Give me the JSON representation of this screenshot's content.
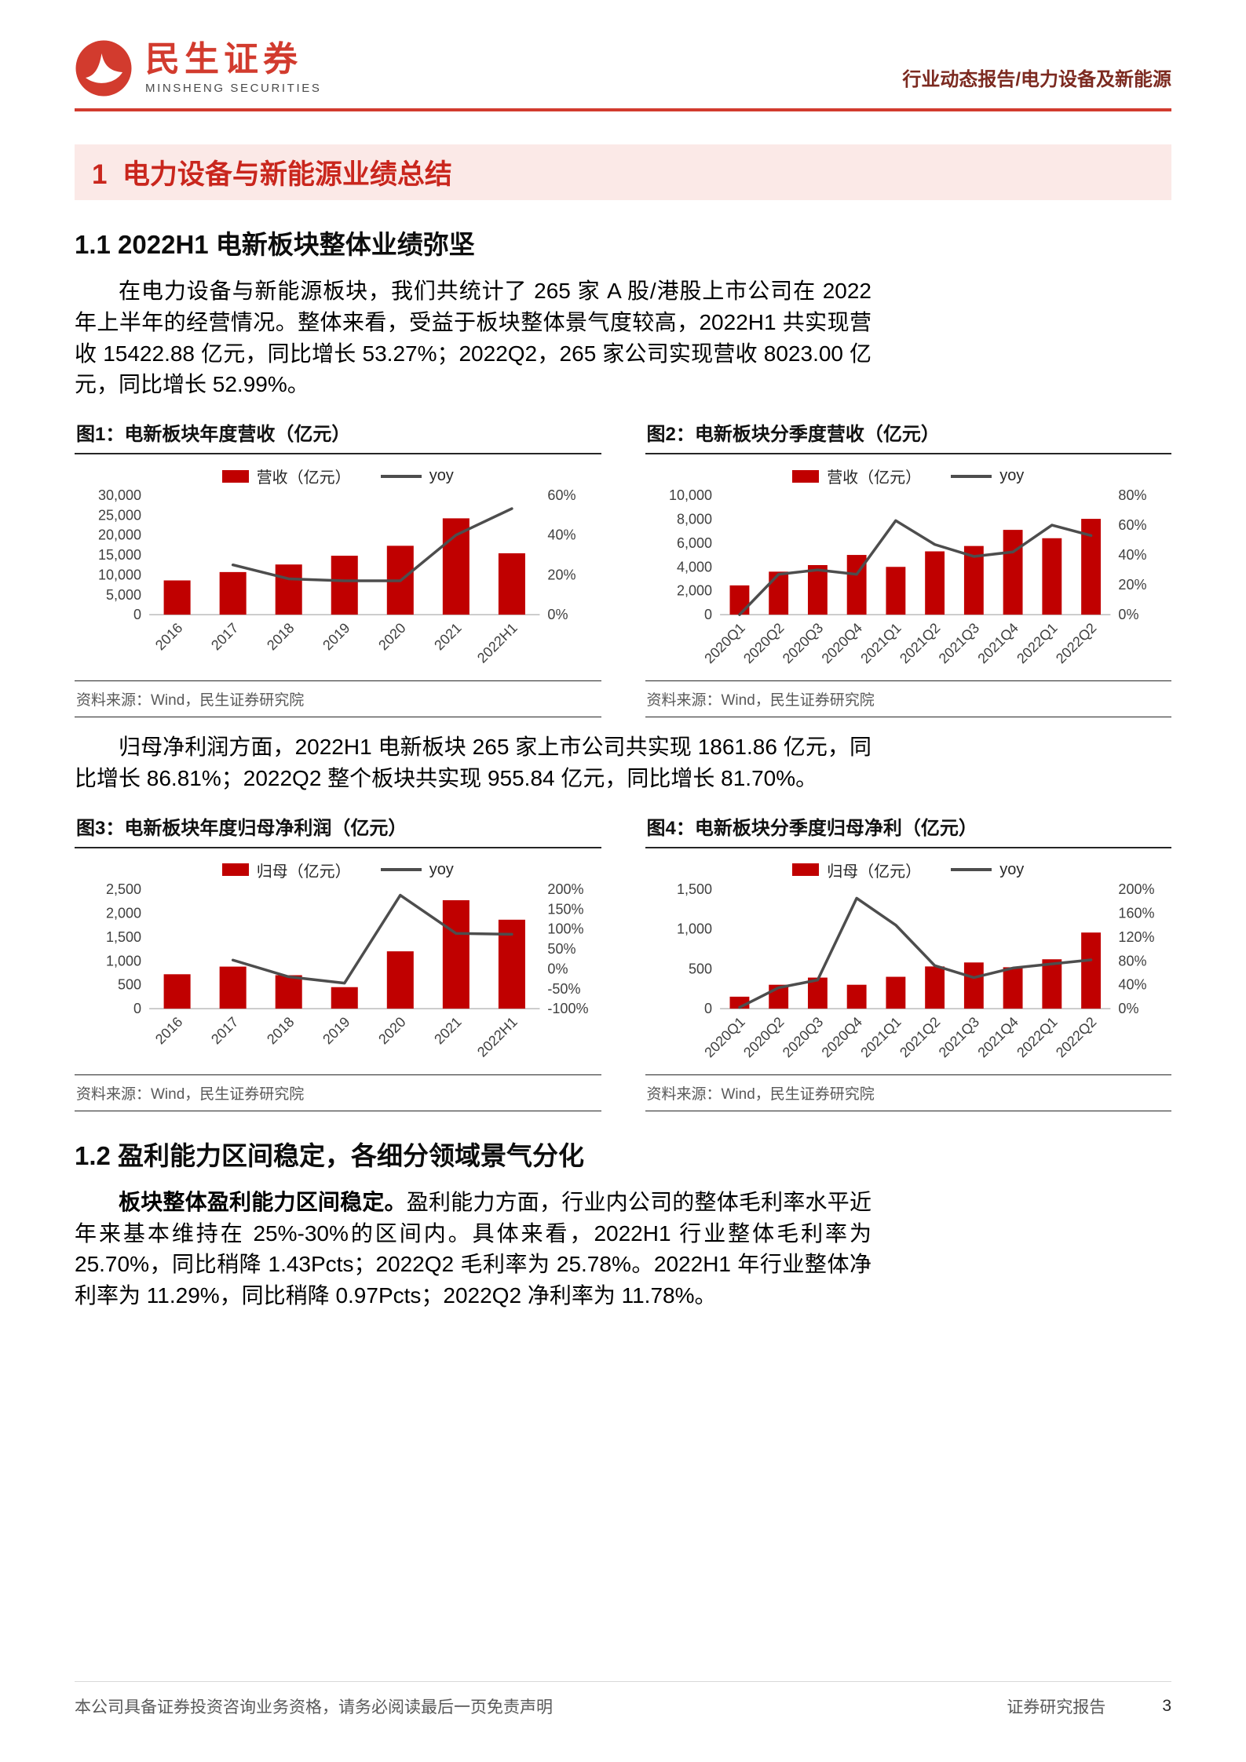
{
  "theme": {
    "brand_red": "#D23B2E",
    "header_type_color": "#7C2A20",
    "section_bg": "#FBE9E7",
    "section_red": "#C9261D",
    "bar_color": "#C00000",
    "line_color": "#4D4D4D",
    "source_gray": "#595959"
  },
  "header": {
    "brand_cn": "民生证券",
    "brand_en": "MINSHENG SECURITIES",
    "report_type": "行业动态报告/电力设备及新能源"
  },
  "body": {
    "section1_title": "1  电力设备与新能源业绩总结",
    "section11_title": "1.1 2022H1 电新板块整体业绩弥坚",
    "para1": "在电力设备与新能源板块，我们共统计了 265 家 A 股/港股上市公司在 2022 年上半年的经营情况。整体来看，受益于板块整体景气度较高，2022H1 共实现营收 15422.88 亿元，同比增长 53.27%；2022Q2，265 家公司实现营收 8023.00 亿元，同比增长 52.99%。",
    "para2": "归母净利润方面，2022H1 电新板块 265 家上市公司共实现 1861.86 亿元，同比增长 86.81%；2022Q2 整个板块共实现 955.84 亿元，同比增长 81.70%。",
    "section12_title": "1.2 盈利能力区间稳定，各细分领域景气分化",
    "para3_bold": "板块整体盈利能力区间稳定。",
    "para3_rest": "盈利能力方面，行业内公司的整体毛利率水平近年来基本维持在 25%-30%的区间内。具体来看，2022H1 行业整体毛利率为 25.70%，同比稍降 1.43Pcts；2022Q2 毛利率为 25.78%。2022H1 年行业整体净利率为 11.29%，同比稍降 0.97Pcts；2022Q2 净利率为 11.78%。"
  },
  "footer": {
    "left": "本公司具备证券投资咨询业务资格，请务必阅读最后一页免责声明",
    "right": "证券研究报告",
    "page": "3"
  },
  "chart_data": [
    {
      "type": "bar",
      "title": "图1：电新板块年度营收（亿元）",
      "legend_bar": "营收（亿元）",
      "legend_line": "yoy",
      "source": "资料来源：Wind，民生证券研究院",
      "categories": [
        "2016",
        "2017",
        "2018",
        "2019",
        "2020",
        "2021",
        "2022H1"
      ],
      "bar_values": [
        8600,
        10700,
        12600,
        14800,
        17300,
        24200,
        15423
      ],
      "line_values": [
        null,
        25,
        18,
        17,
        17,
        40,
        53.27
      ],
      "left_axis": {
        "min": 0,
        "max": 30000,
        "step": 5000
      },
      "right_axis": {
        "min": 0,
        "max": 60,
        "step": 20
      },
      "legend_position": "top",
      "grid": false
    },
    {
      "type": "bar",
      "title": "图2：电新板块分季度营收（亿元）",
      "legend_bar": "营收（亿元）",
      "legend_line": "yoy",
      "source": "资料来源：Wind，民生证券研究院",
      "categories": [
        "2020Q1",
        "2020Q2",
        "2020Q3",
        "2020Q4",
        "2021Q1",
        "2021Q2",
        "2021Q3",
        "2021Q4",
        "2022Q1",
        "2022Q2"
      ],
      "bar_values": [
        2450,
        3600,
        4150,
        5000,
        4000,
        5300,
        5750,
        7100,
        6400,
        8023
      ],
      "line_values": [
        0,
        27,
        30,
        27,
        63,
        47,
        39,
        42,
        60,
        52.99
      ],
      "left_axis": {
        "min": 0,
        "max": 10000,
        "step": 2000
      },
      "right_axis": {
        "min": 0,
        "max": 80,
        "step": 20
      },
      "legend_position": "top",
      "grid": false
    },
    {
      "type": "bar",
      "title": "图3：电新板块年度归母净利润（亿元）",
      "legend_bar": "归母（亿元）",
      "legend_line": "yoy",
      "source": "资料来源：Wind，民生证券研究院",
      "categories": [
        "2016",
        "2017",
        "2018",
        "2019",
        "2020",
        "2021",
        "2022H1"
      ],
      "bar_values": [
        720,
        880,
        700,
        450,
        1200,
        2270,
        1862
      ],
      "line_values": [
        null,
        22,
        -20,
        -36,
        185,
        89,
        86.81
      ],
      "left_axis": {
        "min": 0,
        "max": 2500,
        "step": 500
      },
      "right_axis": {
        "min": -100,
        "max": 200,
        "step": 50
      },
      "legend_position": "top",
      "grid": false
    },
    {
      "type": "bar",
      "title": "图4：电新板块分季度归母净利（亿元）",
      "legend_bar": "归母（亿元）",
      "legend_line": "yoy",
      "source": "资料来源：Wind，民生证券研究院",
      "categories": [
        "2020Q1",
        "2020Q2",
        "2020Q3",
        "2020Q4",
        "2021Q1",
        "2021Q2",
        "2021Q3",
        "2021Q4",
        "2022Q1",
        "2022Q2"
      ],
      "bar_values": [
        150,
        300,
        390,
        300,
        400,
        530,
        580,
        520,
        620,
        956
      ],
      "line_values": [
        2,
        35,
        48,
        185,
        140,
        72,
        52,
        68,
        75,
        81.7
      ],
      "left_axis": {
        "min": 0,
        "max": 1500,
        "step": 500
      },
      "right_axis": {
        "min": 0,
        "max": 200,
        "step": 40
      },
      "legend_position": "top",
      "grid": false
    }
  ]
}
